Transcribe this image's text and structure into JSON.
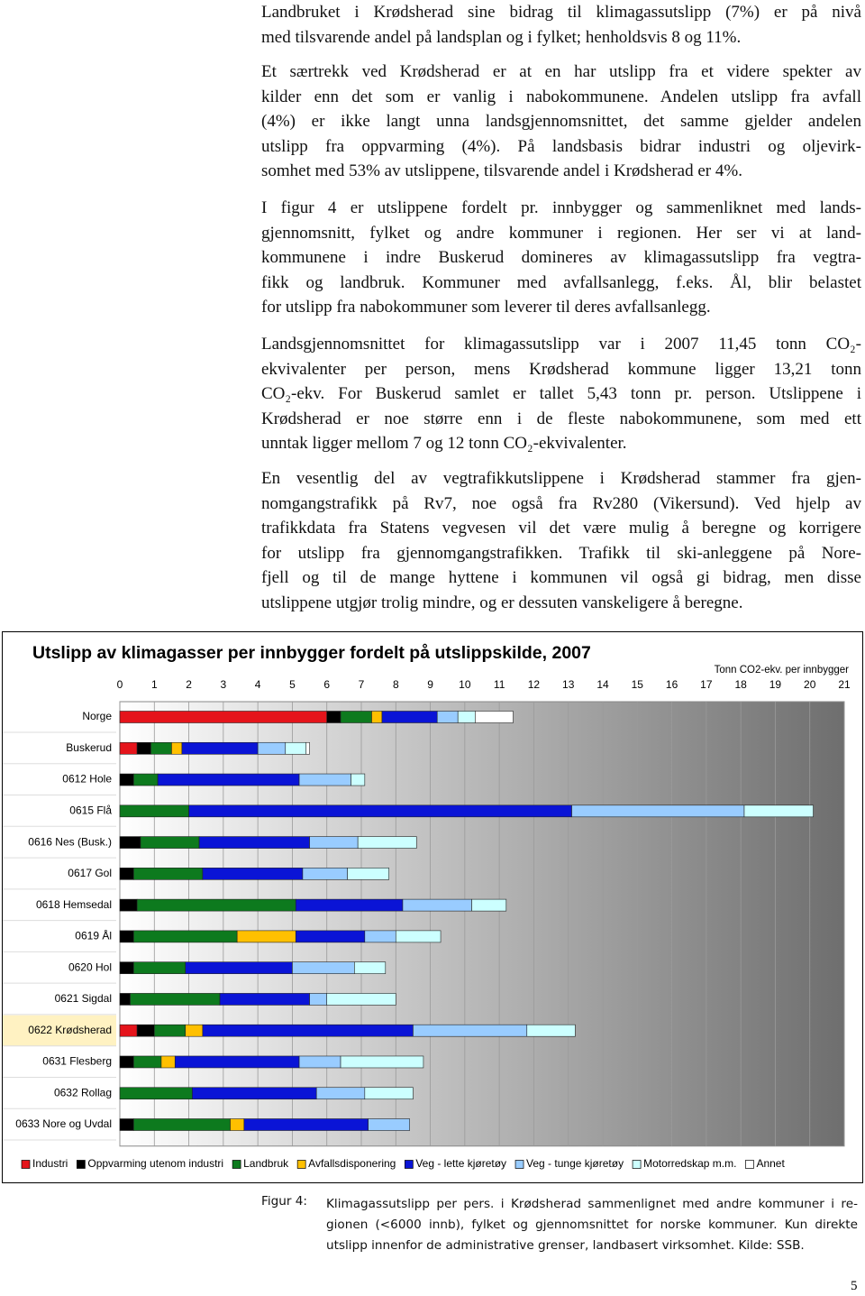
{
  "paragraphs": [
    {
      "lines": [
        "Landbruket i Krødsherad sine bidrag til klimagassutslipp (7%) er på nivå",
        "med tilsvarende andel på landsplan og i fylket; henholdsvis 8 og 11%."
      ]
    },
    {
      "lines": [
        "Et særtrekk ved Krødsherad er at en har utslipp fra et videre spekter av",
        "kilder enn det som er vanlig i nabokommunene. Andelen utslipp fra avfall",
        "(4%) er ikke langt unna landsgjennomsnittet, det samme gjelder andelen",
        "utslipp fra oppvarming (4%). På landsbasis bidrar industri og oljevirk-",
        "somhet med 53% av utslippene, tilsvarende andel i Krødsherad er 4%."
      ]
    },
    {
      "lines": [
        "I figur 4 er utslippene fordelt pr. innbygger og sammenliknet med lands-",
        "gjennomsnitt, fylket og andre kommuner i regionen. Her ser vi at land-",
        "kommunene i indre Buskerud domineres av klimagassutslipp fra vegtra-",
        "fikk og landbruk. Kommuner med avfallsanlegg, f.eks. Ål, blir belastet",
        "for utslipp fra nabokommuner som leverer til deres avfallsanlegg."
      ]
    },
    {
      "lines": [
        "Landsgjennomsnittet for klimagassutslipp var i 2007 11,45 tonn CO₂-",
        "ekvivalenter per person, mens Krødsherad kommune ligger 13,21 tonn",
        "CO₂-ekv. For Buskerud samlet er tallet 5,43 tonn pr. person. Utslippene i",
        "Krødsherad er noe større enn i de fleste nabokommunene, som med ett",
        "unntak ligger mellom 7 og 12 tonn CO₂-ekvivalenter."
      ]
    },
    {
      "lines": [
        "En vesentlig del av vegtrafikkutslippene i Krødsherad stammer fra gjen-",
        "nomgangstrafikk på Rv7, noe også fra Rv280 (Vikersund). Ved hjelp av",
        "trafikkdata fra Statens vegvesen vil det være mulig å beregne og korrigere",
        "for utslipp fra gjennomgangstrafikken. Trafikk til ski-anleggene på Nore-",
        "fjell og til de mange hyttene i kommunen vil også gi bidrag, men disse",
        "utslippene utgjør trolig mindre, og er dessuten vanskeligere å beregne."
      ]
    }
  ],
  "chart_data": {
    "type": "bar",
    "orientation": "horizontal",
    "stacked": true,
    "title": "Utslipp av klimagasser per innbygger fordelt på utslippskilde, 2007",
    "xlabel": "Tonn CO2-ekv. per innbygger",
    "categories": [
      "Norge",
      "Buskerud",
      "0612 Hole",
      "0615 Flå",
      "0616 Nes (Busk.)",
      "0617 Gol",
      "0618 Hemsedal",
      "0619 Ål",
      "0620 Hol",
      "0621 Sigdal",
      "0622 Krødsherad",
      "0631 Flesberg",
      "0632 Rollag",
      "0633 Nore og Uvdal"
    ],
    "highlight": "0622 Krødsherad",
    "xlim": [
      0,
      21
    ],
    "xticks": [
      0,
      1,
      2,
      3,
      4,
      5,
      6,
      7,
      8,
      9,
      10,
      11,
      12,
      13,
      14,
      15,
      16,
      17,
      18,
      19,
      20,
      21
    ],
    "grid": true,
    "series": [
      {
        "name": "Industri",
        "color": "#e5141b",
        "values": [
          6.0,
          0.5,
          0,
          0,
          0,
          0,
          0,
          0,
          0,
          0,
          0.5,
          0,
          0,
          0
        ]
      },
      {
        "name": "Oppvarming utenom industri",
        "color": "#000000",
        "values": [
          0.4,
          0.4,
          0.4,
          0,
          0.6,
          0.4,
          0.5,
          0.4,
          0.4,
          0.3,
          0.5,
          0.4,
          0,
          0.4
        ]
      },
      {
        "name": "Landbruk",
        "color": "#0d7a1e",
        "values": [
          0.9,
          0.6,
          0.7,
          2.0,
          1.7,
          2.0,
          4.6,
          3.0,
          1.5,
          2.6,
          0.9,
          0.8,
          2.1,
          2.8
        ]
      },
      {
        "name": "Avfallsdisponering",
        "color": "#ffc000",
        "values": [
          0.3,
          0.3,
          0,
          0,
          0,
          0,
          0,
          1.7,
          0,
          0,
          0.5,
          0.4,
          0,
          0.4
        ]
      },
      {
        "name": "Veg - lette kjøretøy",
        "color": "#0a14d6",
        "values": [
          1.6,
          2.2,
          4.1,
          11.1,
          3.2,
          2.9,
          3.1,
          2.0,
          3.1,
          2.6,
          6.1,
          3.6,
          3.6,
          3.6
        ]
      },
      {
        "name": "Veg - tunge kjøretøy",
        "color": "#99ccff",
        "values": [
          0.6,
          0.8,
          1.5,
          5.0,
          1.4,
          1.3,
          2.0,
          0.9,
          1.8,
          0.5,
          3.3,
          1.2,
          1.4,
          1.2
        ]
      },
      {
        "name": "Motorredskap m.m.",
        "color": "#ccffff",
        "values": [
          0.5,
          0.6,
          0.4,
          2.0,
          1.7,
          1.2,
          1.0,
          1.3,
          0.9,
          2.0,
          1.4,
          2.4,
          1.4,
          0
        ]
      },
      {
        "name": "Annet",
        "color": "#ffffff",
        "values": [
          1.1,
          0.1,
          0,
          0,
          0,
          0,
          0,
          0,
          0,
          0,
          0,
          0,
          0,
          0
        ]
      }
    ]
  },
  "caption": {
    "label": "Figur 4:",
    "lines": [
      "Klimagassutslipp per pers. i Krødsherad sammenlignet med andre kommuner i re-",
      "gionen (<6000 innb), fylket og gjennomsnittet for norske kommuner. Kun direkte",
      "utslipp innenfor de administrative grenser, landbasert virksomhet. Kilde: SSB."
    ]
  },
  "page_number": 5
}
